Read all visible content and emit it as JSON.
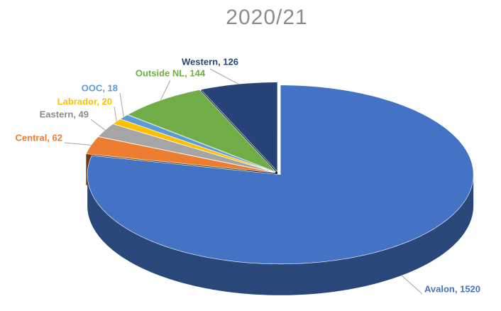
{
  "chart_data": {
    "type": "pie",
    "title": "2020/21",
    "values": [
      1520,
      62,
      49,
      20,
      18,
      144,
      126
    ],
    "value_labels": [
      "Avalon, 1520",
      "Central, 62",
      "Eastern, 49",
      "Labrador, 20",
      "OOC, 18",
      "Outside NL, 144",
      "Western, 126"
    ],
    "colors": [
      "#4472c4",
      "#ed7d31",
      "#a5a5a5",
      "#ffc000",
      "#5b9bd5",
      "#70ad47",
      "#264478"
    ],
    "three_d": true
  }
}
